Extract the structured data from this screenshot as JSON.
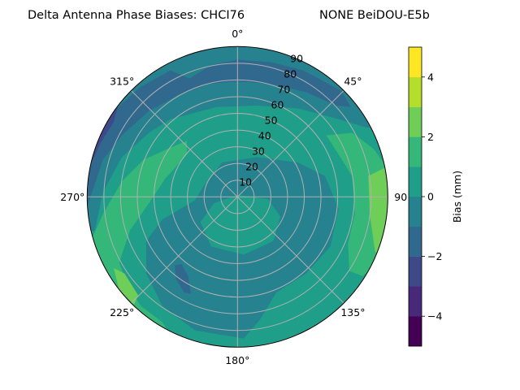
{
  "chart_data": {
    "type": "polar-contour",
    "title_left": "Delta Antenna Phase Biases: CHCI76",
    "title_right": "NONE BeiDOU-E5b",
    "angular_ticks": [
      "0°",
      "45°",
      "90",
      "135°",
      "180°",
      "225°",
      "270°",
      "315°"
    ],
    "radial_ticks": [
      "10",
      "20",
      "30",
      "40",
      "50",
      "60",
      "70",
      "80",
      "90"
    ],
    "radial_range": [
      0,
      90
    ],
    "grid": true,
    "colorbar": {
      "label": "Bias (mm)",
      "range": [
        -5,
        5
      ],
      "levels": [
        -5,
        -4,
        -3,
        -2,
        -1,
        0,
        1,
        2,
        3,
        4,
        5
      ],
      "ticks": [
        "−4",
        "−2",
        "0",
        "2",
        "4"
      ],
      "tick_values": [
        -4,
        -2,
        0,
        2,
        4
      ],
      "colormap": "viridis",
      "colors": [
        "#440154",
        "#482878",
        "#3e4989",
        "#31688e",
        "#26828e",
        "#1f9e89",
        "#35b779",
        "#6ece58",
        "#b5de2b",
        "#fde725"
      ]
    },
    "observed_range": [
      -3,
      3
    ]
  }
}
